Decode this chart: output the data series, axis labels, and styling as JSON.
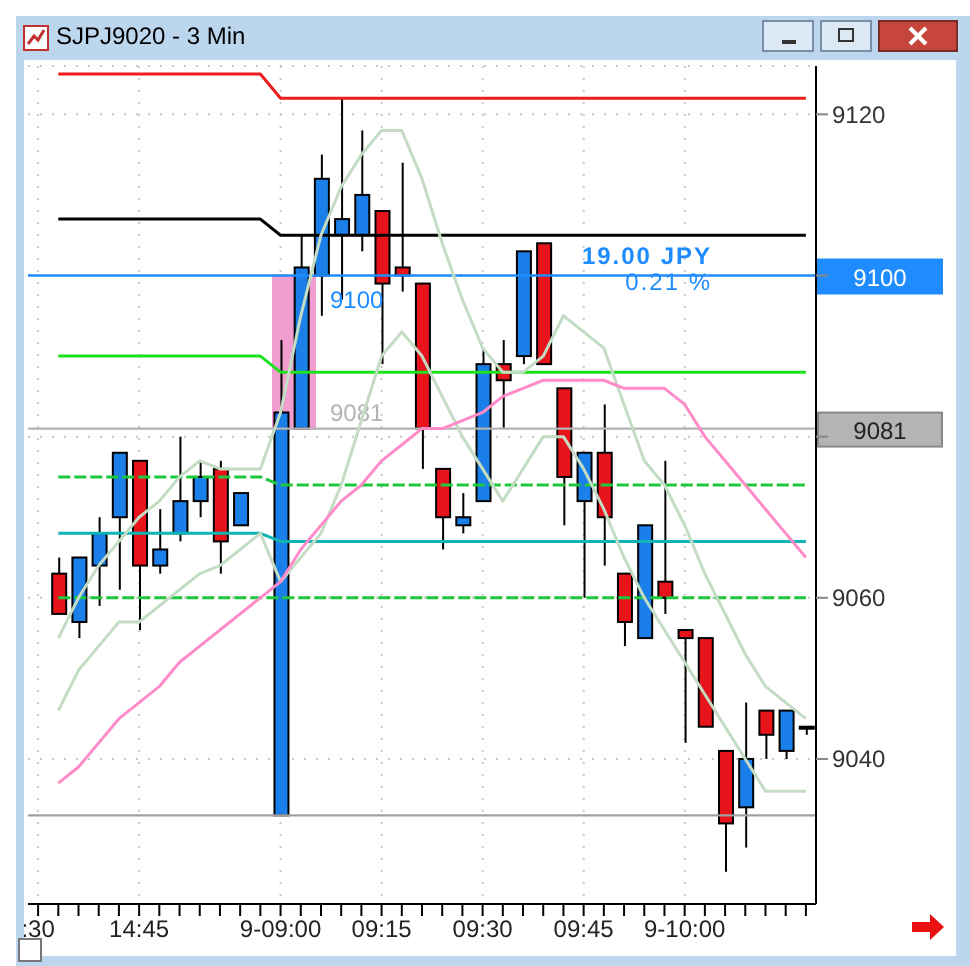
{
  "chart_data": {
    "type": "candlestick",
    "title": "SJPJ9020 - 3 Min",
    "categories": [
      ":30",
      null,
      null,
      null,
      null,
      "14:45",
      null,
      null,
      null,
      null,
      null,
      null,
      "9-09:00",
      null,
      null,
      null,
      null,
      "09:15",
      null,
      null,
      null,
      null,
      "09:30",
      null,
      null,
      null,
      null,
      "09:45",
      null,
      null,
      null,
      null,
      "9-10:00",
      null,
      null,
      null,
      null,
      null,
      null
    ],
    "ohlc": [
      null,
      [
        9063,
        9065,
        9058,
        9058
      ],
      [
        9057,
        9065,
        9055,
        9065
      ],
      [
        9064,
        9070,
        9059,
        9068
      ],
      [
        9070,
        9078,
        9061,
        9078
      ],
      [
        9077,
        9077,
        9056,
        9064
      ],
      [
        9064,
        9071,
        9063,
        9066
      ],
      [
        9068,
        9080,
        9067,
        9072
      ],
      [
        9072,
        9077,
        9070,
        9075
      ],
      [
        9076,
        9077,
        9063,
        9067
      ],
      [
        9069,
        9073,
        9069,
        9073
      ],
      null,
      [
        9033,
        9092,
        9033,
        9083
      ],
      [
        9081,
        9105,
        9081,
        9101
      ],
      [
        9100,
        9115,
        9095,
        9112
      ],
      [
        9105,
        9122,
        9097,
        9107
      ],
      [
        9105,
        9118,
        9103,
        9110
      ],
      [
        9108,
        9108,
        9089,
        9099
      ],
      [
        9101,
        9114,
        9098,
        9100
      ],
      [
        9099,
        9099,
        9076,
        9081
      ],
      [
        9076,
        9076,
        9066,
        9070
      ],
      [
        9069,
        9073,
        9068,
        9070
      ],
      [
        9072,
        9091,
        9072,
        9089
      ],
      [
        9089,
        9092,
        9081,
        9087
      ],
      [
        9090,
        9103,
        9089,
        9103
      ],
      [
        9104,
        9104,
        9089,
        9089
      ],
      [
        9086,
        9086,
        9069,
        9075
      ],
      [
        9072,
        9078,
        9060,
        9078
      ],
      [
        9078,
        9084,
        9064,
        9070
      ],
      [
        9063,
        9063,
        9054,
        9057
      ],
      [
        9055,
        9069,
        9055,
        9069
      ],
      [
        9062,
        9077,
        9058,
        9060
      ],
      [
        9056,
        9056,
        9042,
        9055
      ],
      [
        9055,
        9055,
        9044,
        9044
      ],
      [
        9041,
        9041,
        9026,
        9032
      ],
      [
        9034,
        9047,
        9029,
        9040
      ],
      [
        9046,
        9046,
        9040,
        9043
      ],
      [
        9041,
        9046,
        9040,
        9046
      ],
      [
        9044,
        9044,
        9043,
        9044
      ]
    ],
    "colors": [
      null,
      "#e8141c",
      "#1a7fe8",
      "#1a7fe8",
      "#1a7fe8",
      "#e8141c",
      "#1a7fe8",
      "#1a7fe8",
      "#1a7fe8",
      "#e8141c",
      "#1a7fe8",
      null,
      "#1a7fe8",
      "#1a7fe8",
      "#1a7fe8",
      "#1a7fe8",
      "#1a7fe8",
      "#e8141c",
      "#e8141c",
      "#e8141c",
      "#e8141c",
      "#1a7fe8",
      "#1a7fe8",
      "#e8141c",
      "#1a7fe8",
      "#e8141c",
      "#e8141c",
      "#1a7fe8",
      "#e8141c",
      "#e8141c",
      "#1a7fe8",
      "#e8141c",
      "#e8141c",
      "#e8141c",
      "#e8141c",
      "#1a7fe8",
      "#e8141c",
      "#1a7fe8",
      "#e8141c"
    ],
    "series": [
      {
        "type": "line",
        "color": "#ee1c1c",
        "values": [
          null,
          9125,
          9125,
          9125,
          9125,
          9125,
          9125,
          9125,
          9125,
          9125,
          9125,
          9125,
          9122,
          9122,
          9122,
          9122,
          9122,
          9122,
          9122,
          9122,
          9122,
          9122,
          9122,
          9122,
          9122,
          9122,
          9122,
          9122,
          9122,
          9122,
          9122,
          9122,
          9122,
          9122,
          9122,
          9122,
          9122,
          9122,
          9122
        ]
      },
      {
        "type": "line",
        "color": "#000000",
        "values": [
          null,
          9107,
          9107,
          9107,
          9107,
          9107,
          9107,
          9107,
          9107,
          9107,
          9107,
          9107,
          9105,
          9105,
          9105,
          9105,
          9105,
          9105,
          9105,
          9105,
          9105,
          9105,
          9105,
          9105,
          9105,
          9105,
          9105,
          9105,
          9105,
          9105,
          9105,
          9105,
          9105,
          9105,
          9105,
          9105,
          9105,
          9105,
          9105
        ]
      },
      {
        "type": "line",
        "color": "#1ee01e",
        "values": [
          null,
          9090,
          9090,
          9090,
          9090,
          9090,
          9090,
          9090,
          9090,
          9090,
          9090,
          9090,
          9088,
          9088,
          9088,
          9088,
          9088,
          9088,
          9088,
          9088,
          9088,
          9088,
          9088,
          9088,
          9088,
          9088,
          9088,
          9088,
          9088,
          9088,
          9088,
          9088,
          9088,
          9088,
          9088,
          9088,
          9088,
          9088,
          9088
        ]
      },
      {
        "type": "line",
        "color": "#1ec83c",
        "line_style": "dashed",
        "values": [
          null,
          9075,
          9075,
          9075,
          9075,
          9075,
          9075,
          9075,
          9075,
          9075,
          9075,
          9075,
          9074,
          9074,
          9074,
          9074,
          9074,
          9074,
          9074,
          9074,
          9074,
          9074,
          9074,
          9074,
          9074,
          9074,
          9074,
          9074,
          9074,
          9074,
          9074,
          9074,
          9074,
          9074,
          9074,
          9074,
          9074,
          9074,
          9074
        ]
      },
      {
        "type": "line",
        "color": "#10b4b4",
        "values": [
          null,
          9068,
          9068,
          9068,
          9068,
          9068,
          9068,
          9068,
          9068,
          9068,
          9068,
          9068,
          9067,
          9067,
          9067,
          9067,
          9067,
          9067,
          9067,
          9067,
          9067,
          9067,
          9067,
          9067,
          9067,
          9067,
          9067,
          9067,
          9067,
          9067,
          9067,
          9067,
          9067,
          9067,
          9067,
          9067,
          9067,
          9067,
          9067
        ]
      },
      {
        "type": "line",
        "color": "#1ec83c",
        "line_style": "dashed",
        "values": [
          null,
          9060,
          9060,
          9060,
          9060,
          9060,
          9060,
          9060,
          9060,
          9060,
          9060,
          9060,
          9060,
          9060,
          9060,
          9060,
          9060,
          9060,
          9060,
          9060,
          9060,
          9060,
          9060,
          9060,
          9060,
          9060,
          9060,
          9060,
          9060,
          9060,
          9060,
          9060,
          9060,
          9060,
          9060,
          9060,
          9060,
          9060,
          9060
        ]
      },
      {
        "type": "line",
        "color": "#c4dcc4",
        "values": [
          null,
          9055,
          9060,
          9064,
          9067,
          9070,
          9072,
          9075,
          9077,
          9076,
          9076,
          9076,
          9083,
          9095,
          9105,
          9111,
          9115,
          9118,
          9118,
          9112,
          9104,
          9097,
          9091,
          9088,
          9088,
          9090,
          9095,
          9093,
          9091,
          9084,
          9077,
          9074,
          9069,
          9063,
          9058,
          9053,
          9049,
          9047,
          9045
        ]
      },
      {
        "type": "line",
        "color": "#c4dcc4",
        "values": [
          null,
          9046,
          9051,
          9054,
          9057,
          9057,
          9059,
          9061,
          9063,
          9064,
          9066,
          9068,
          9062,
          9065,
          9068,
          9074,
          9082,
          9090,
          9093,
          9090,
          9085,
          9080,
          9076,
          9072,
          9076,
          9080,
          9080,
          9076,
          9071,
          9065,
          9060,
          9056,
          9052,
          9048,
          9044,
          9040,
          9036,
          9036,
          9036
        ]
      },
      {
        "type": "line",
        "color": "#ff8cc8",
        "values": [
          null,
          9037,
          9039,
          9042,
          9045,
          9047,
          9049,
          9052,
          9054,
          9056,
          9058,
          9060,
          9062,
          9066,
          9069,
          9072,
          9074,
          9077,
          9079,
          9081,
          9081,
          9082,
          9083,
          9085,
          9086,
          9087,
          9087,
          9087,
          9087,
          9086,
          9086,
          9086,
          9084,
          9080,
          9077,
          9074,
          9071,
          9068,
          9065
        ]
      }
    ],
    "ylim": [
      9022,
      9126
    ],
    "yticks": [
      9040,
      9060,
      {
        "value": 9080,
        "label": null
      },
      {
        "value": 9100,
        "label": null
      },
      9120
    ],
    "ref_lines": [
      {
        "axis": "y",
        "value": 9100,
        "label": "9100",
        "color": "#1e8cff"
      },
      {
        "axis": "y",
        "value": 9081,
        "label": "9081",
        "color": "#b4b4b4"
      },
      {
        "axis": "y",
        "value": 9033,
        "color": "#a0a0a0"
      }
    ],
    "annotations": [
      "19.00 JPY",
      "0.21 %"
    ],
    "grid": true
  }
}
